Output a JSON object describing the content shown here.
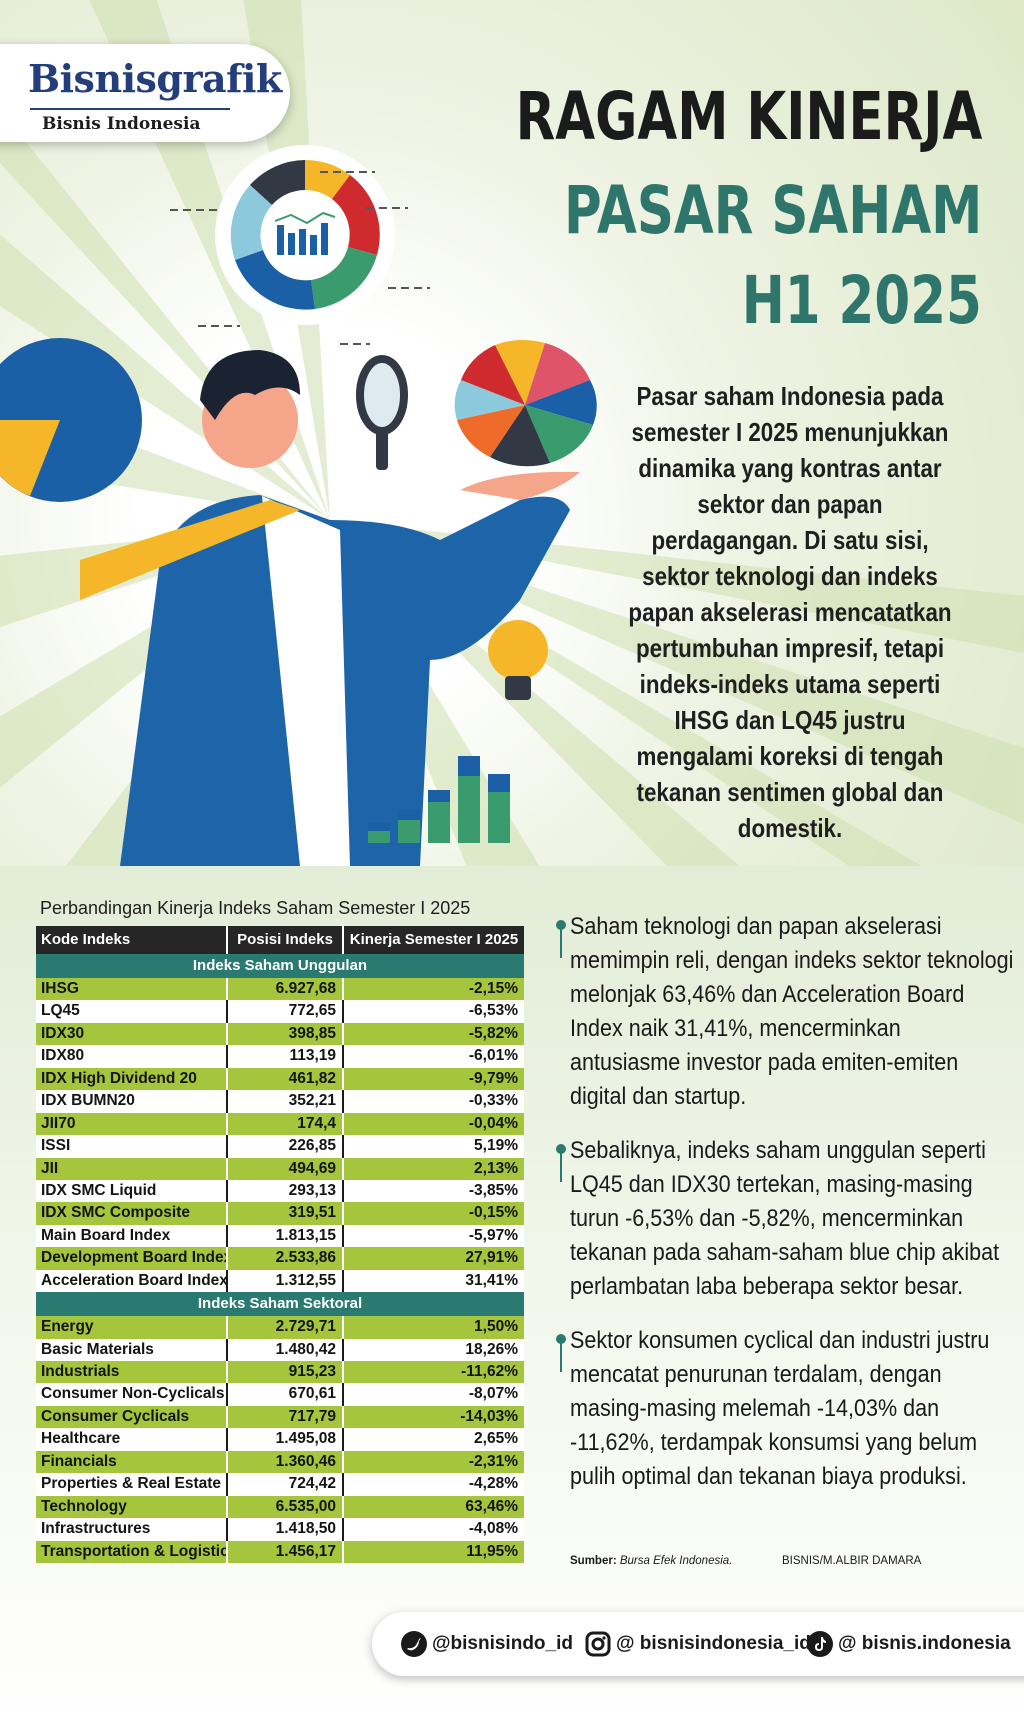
{
  "logo": {
    "name": "Bisnisgrafik",
    "sub": "Bisnis Indonesia"
  },
  "title": {
    "line1": "RAGAM KINERJA",
    "line2": "PASAR SAHAM",
    "line3": "H1 2025"
  },
  "intro": "Pasar saham Indonesia pada semester I 2025 menunjukkan dinamika yang kontras antar sektor dan papan perdagangan. Di satu sisi, sektor teknologi dan indeks papan akselerasi mencatatkan pertumbuhan impresif, tetapi indeks-indeks utama seperti IHSG dan LQ45 justru mengalami koreksi di tengah tekanan sentimen global dan domestik.",
  "table": {
    "title": "Perbandingan Kinerja Indeks Saham Semester I 2025",
    "headers": [
      "Kode Indeks",
      "Posisi Indeks",
      "Kinerja Semester I 2025"
    ],
    "sections": [
      {
        "name": "Indeks Saham Unggulan",
        "rows": [
          [
            "IHSG",
            "6.927,68",
            "-2,15%"
          ],
          [
            "LQ45",
            "772,65",
            "-6,53%"
          ],
          [
            "IDX30",
            "398,85",
            "-5,82%"
          ],
          [
            "IDX80",
            "113,19",
            "-6,01%"
          ],
          [
            "IDX High Dividend 20",
            "461,82",
            "-9,79%"
          ],
          [
            "IDX BUMN20",
            "352,21",
            "-0,33%"
          ],
          [
            "JII70",
            "174,4",
            "-0,04%"
          ],
          [
            "ISSI",
            "226,85",
            "5,19%"
          ],
          [
            "JII",
            "494,69",
            "2,13%"
          ],
          [
            "IDX SMC Liquid",
            "293,13",
            "-3,85%"
          ],
          [
            "IDX SMC Composite",
            "319,51",
            "-0,15%"
          ],
          [
            "Main Board Index",
            "1.813,15",
            "-5,97%"
          ],
          [
            "Development Board Index",
            "2.533,86",
            "27,91%"
          ],
          [
            "Acceleration Board Index",
            "1.312,55",
            "31,41%"
          ]
        ]
      },
      {
        "name": "Indeks Saham Sektoral",
        "rows": [
          [
            "Energy",
            "2.729,71",
            "1,50%"
          ],
          [
            "Basic Materials",
            "1.480,42",
            "18,26%"
          ],
          [
            "Industrials",
            "915,23",
            "-11,62%"
          ],
          [
            "Consumer Non-Cyclicals",
            "670,61",
            "-8,07%"
          ],
          [
            "Consumer Cyclicals",
            "717,79",
            "-14,03%"
          ],
          [
            "Healthcare",
            "1.495,08",
            "2,65%"
          ],
          [
            "Financials",
            "1.360,46",
            "-2,31%"
          ],
          [
            "Properties & Real Estate",
            "724,42",
            "-4,28%"
          ],
          [
            "Technology",
            "6.535,00",
            "63,46%"
          ],
          [
            "Infrastructures",
            "1.418,50",
            "-4,08%"
          ],
          [
            "Transportation & Logistic",
            "1.456,17",
            "11,95%"
          ]
        ]
      }
    ]
  },
  "bullets": [
    "Saham teknologi dan papan akselerasi memimpin reli, dengan indeks sektor teknologi melonjak 63,46% dan Acceleration Board Index naik 31,41%, mencerminkan antusiasme investor pada emiten-emiten digital dan startup.",
    "Sebaliknya, indeks saham unggulan seperti LQ45 dan IDX30 tertekan, masing-masing turun -6,53% dan -5,82%, mencerminkan tekanan pada saham-saham blue chip akibat perlambatan laba beberapa sektor besar.",
    "Sektor konsumen cyclical dan industri justru mencatat penurunan terdalam, dengan masing-masing melemah -14,03% dan -11,62%, terdampak konsumsi yang belum pulih optimal dan tekanan biaya produksi."
  ],
  "source": {
    "label": "Sumber:",
    "value": "Bursa Efek Indonesia."
  },
  "credit": "BISNIS/M.ALBIR DAMARA",
  "social": [
    {
      "icon": "twitter-icon",
      "handle": "@bisnisindo_id"
    },
    {
      "icon": "instagram-icon",
      "handle": "@ bisnisindonesia_id"
    },
    {
      "icon": "tiktok-icon",
      "handle": "@ bisnis.indonesia"
    }
  ],
  "colors": {
    "teal": "#2a7a71",
    "lime": "#a5c63c",
    "dark": "#262626",
    "navy": "#243e7c"
  }
}
